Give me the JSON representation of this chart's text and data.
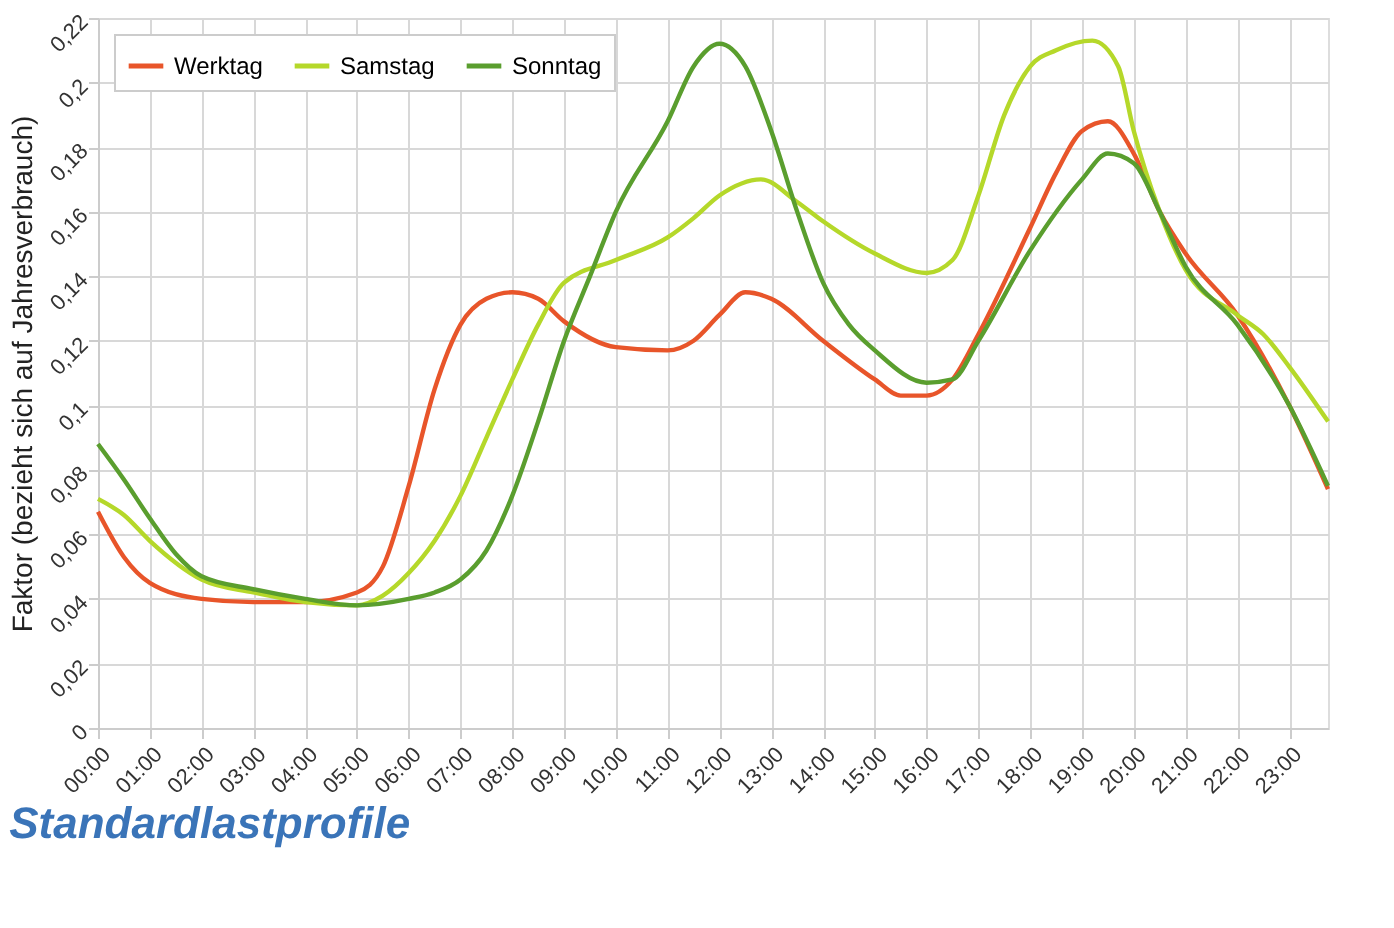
{
  "chart_data": {
    "type": "line",
    "title": "Standardlastprofile",
    "ylabel": "Faktor (bezieht sich auf Jahresverbrauch)",
    "xlim": [
      0,
      23.75
    ],
    "xticks": [
      {
        "value": 0,
        "label": "00:00"
      },
      {
        "value": 1,
        "label": "01:00"
      },
      {
        "value": 2,
        "label": "02:00"
      },
      {
        "value": 3,
        "label": "03:00"
      },
      {
        "value": 4,
        "label": "04:00"
      },
      {
        "value": 5,
        "label": "05:00"
      },
      {
        "value": 6,
        "label": "06:00"
      },
      {
        "value": 7,
        "label": "07:00"
      },
      {
        "value": 8,
        "label": "08:00"
      },
      {
        "value": 9,
        "label": "09:00"
      },
      {
        "value": 10,
        "label": "10:00"
      },
      {
        "value": 11,
        "label": "11:00"
      },
      {
        "value": 12,
        "label": "12:00"
      },
      {
        "value": 13,
        "label": "13:00"
      },
      {
        "value": 14,
        "label": "14:00"
      },
      {
        "value": 15,
        "label": "15:00"
      },
      {
        "value": 16,
        "label": "16:00"
      },
      {
        "value": 17,
        "label": "17:00"
      },
      {
        "value": 18,
        "label": "18:00"
      },
      {
        "value": 19,
        "label": "19:00"
      },
      {
        "value": 20,
        "label": "20:00"
      },
      {
        "value": 21,
        "label": "21:00"
      },
      {
        "value": 22,
        "label": "22:00"
      },
      {
        "value": 23,
        "label": "23:00"
      }
    ],
    "ylim": [
      0,
      0.22
    ],
    "yticks": [
      0,
      {
        "value": 0.02,
        "label": "0,02"
      },
      {
        "value": 0.04,
        "label": "0,04"
      },
      {
        "value": 0.06,
        "label": "0,06"
      },
      {
        "value": 0.08,
        "label": "0,08"
      },
      {
        "value": 0.1,
        "label": "0,1"
      },
      {
        "value": 0.12,
        "label": "0,12"
      },
      {
        "value": 0.14,
        "label": "0,14"
      },
      {
        "value": 0.16,
        "label": "0,16"
      },
      {
        "value": 0.18,
        "label": "0,18"
      },
      {
        "value": 0.2,
        "label": "0,2"
      },
      {
        "value": 0.22,
        "label": "0,22"
      }
    ],
    "grid": true,
    "legend": "top left",
    "line_style": "solid",
    "marker": "none",
    "series": [
      {
        "name": "Werktag",
        "color": "#e8552a",
        "x": [
          0,
          0.5,
          1,
          2,
          3,
          4,
          5,
          5.5,
          6,
          6.5,
          7,
          7.5,
          8,
          8.5,
          9,
          10,
          11,
          11.5,
          12,
          12.5,
          13,
          14,
          15,
          15.5,
          16,
          16.5,
          17,
          18,
          18.5,
          19,
          19.5,
          20,
          20.5,
          21,
          22,
          23,
          23.75
        ],
        "values": [
          0.067,
          0.053,
          0.045,
          0.04,
          0.039,
          0.039,
          0.042,
          0.05,
          0.075,
          0.105,
          0.125,
          0.133,
          0.135,
          0.133,
          0.126,
          0.118,
          0.117,
          0.12,
          0.128,
          0.135,
          0.133,
          0.12,
          0.108,
          0.103,
          0.103,
          0.108,
          0.122,
          0.155,
          0.172,
          0.185,
          0.188,
          0.178,
          0.16,
          0.147,
          0.128,
          0.1,
          0.074
        ]
      },
      {
        "name": "Samstag",
        "color": "#b5d82a",
        "x": [
          0,
          0.5,
          1,
          2,
          3,
          4,
          5,
          5.5,
          6,
          6.5,
          7,
          7.5,
          8,
          8.5,
          9,
          10,
          11,
          11.5,
          12,
          12.8,
          13.5,
          14,
          15,
          16,
          16.5,
          17,
          17.5,
          18,
          18.5,
          19.2,
          19.7,
          20,
          20.5,
          21,
          22,
          22.5,
          23,
          23.75
        ],
        "values": [
          0.071,
          0.066,
          0.058,
          0.046,
          0.042,
          0.039,
          0.038,
          0.041,
          0.048,
          0.058,
          0.072,
          0.09,
          0.108,
          0.125,
          0.138,
          0.145,
          0.152,
          0.158,
          0.165,
          0.17,
          0.163,
          0.157,
          0.147,
          0.141,
          0.145,
          0.165,
          0.19,
          0.205,
          0.21,
          0.213,
          0.205,
          0.185,
          0.16,
          0.142,
          0.128,
          0.122,
          0.112,
          0.095
        ]
      },
      {
        "name": "Sonntag",
        "color": "#5a9e2e",
        "x": [
          0,
          0.5,
          1,
          1.5,
          2,
          3,
          4,
          5,
          6,
          6.5,
          7,
          7.5,
          8,
          8.5,
          9,
          9.5,
          10,
          11,
          11.5,
          12,
          12.5,
          13,
          13.5,
          14,
          14.5,
          15,
          16,
          16.5,
          17,
          18,
          19,
          19.5,
          20,
          20.5,
          21,
          22,
          23,
          23.75
        ],
        "values": [
          0.088,
          0.077,
          0.065,
          0.054,
          0.047,
          0.043,
          0.04,
          0.038,
          0.04,
          0.042,
          0.046,
          0.055,
          0.072,
          0.095,
          0.12,
          0.14,
          0.16,
          0.188,
          0.205,
          0.212,
          0.205,
          0.185,
          0.16,
          0.138,
          0.125,
          0.117,
          0.107,
          0.108,
          0.12,
          0.148,
          0.17,
          0.178,
          0.175,
          0.16,
          0.143,
          0.125,
          0.1,
          0.075
        ]
      }
    ]
  }
}
